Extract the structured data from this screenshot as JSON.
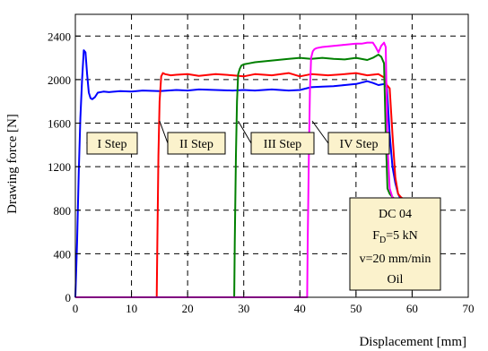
{
  "chart_data": {
    "type": "line",
    "xlabel": "Displacement [mm]",
    "ylabel": "Drawing force [N]",
    "xlim": [
      0,
      70
    ],
    "ylim": [
      0,
      2600
    ],
    "x_ticks": [
      "0",
      "10",
      "20",
      "30",
      "40",
      "50",
      "60",
      "70"
    ],
    "y_ticks": [
      "0",
      "400",
      "800",
      "1200",
      "1600",
      "2000",
      "2400"
    ],
    "grid": true,
    "series": [
      {
        "name": "I Step",
        "color": "#0000ff",
        "x": [
          0,
          0.3,
          0.6,
          0.9,
          1.2,
          1.5,
          1.8,
          2.1,
          2.4,
          2.7,
          3.0,
          3.5,
          4,
          5,
          6,
          8,
          10,
          12,
          15,
          18,
          20,
          22,
          25,
          28,
          30,
          32,
          35,
          38,
          40,
          42,
          44,
          46,
          48,
          50,
          52,
          53,
          54,
          55,
          55.5,
          56,
          56.5,
          57,
          57.5,
          58,
          58.5
        ],
        "y": [
          0,
          500,
          1150,
          1650,
          2000,
          2270,
          2250,
          2050,
          1880,
          1830,
          1820,
          1840,
          1880,
          1890,
          1885,
          1895,
          1890,
          1900,
          1895,
          1905,
          1900,
          1910,
          1905,
          1900,
          1905,
          1900,
          1910,
          1900,
          1905,
          1930,
          1935,
          1940,
          1950,
          1960,
          1985,
          1970,
          1950,
          1960,
          1930,
          1500,
          1200,
          1050,
          950,
          900,
          880
        ]
      },
      {
        "name": "II Step",
        "color": "#ff0000",
        "x": [
          0,
          14.5,
          14.6,
          14.8,
          15.0,
          15.3,
          15.6,
          16,
          17,
          18,
          20,
          22,
          25,
          28,
          30,
          32,
          35,
          38,
          40,
          42,
          45,
          48,
          50,
          52,
          54,
          55,
          55.5,
          56,
          56.5,
          57,
          57.5,
          58,
          58.5
        ],
        "y": [
          0,
          0,
          500,
          1300,
          1800,
          2030,
          2060,
          2050,
          2040,
          2045,
          2050,
          2035,
          2050,
          2040,
          2030,
          2050,
          2040,
          2060,
          2030,
          2050,
          2040,
          2050,
          2060,
          2040,
          2050,
          2020,
          1950,
          1920,
          1500,
          1100,
          950,
          920,
          900
        ]
      },
      {
        "name": "III Step",
        "color": "#008000",
        "x": [
          0,
          28.3,
          28.4,
          28.6,
          28.8,
          29.0,
          29.3,
          29.6,
          30,
          31,
          32,
          34,
          36,
          38,
          40,
          42,
          44,
          46,
          48,
          50,
          52,
          53,
          54,
          54.5,
          55,
          55.3,
          55.6,
          56,
          56.5,
          57,
          57.5
        ],
        "y": [
          0,
          0,
          500,
          1300,
          1800,
          2050,
          2100,
          2130,
          2140,
          2150,
          2160,
          2170,
          2180,
          2190,
          2200,
          2190,
          2200,
          2190,
          2185,
          2200,
          2180,
          2200,
          2230,
          2210,
          2150,
          1500,
          1000,
          950,
          920,
          900,
          880
        ]
      },
      {
        "name": "IV Step",
        "color": "#ff00ff",
        "x": [
          0,
          41.3,
          41.4,
          41.6,
          41.8,
          42.0,
          42.3,
          42.6,
          43,
          44,
          46,
          48,
          50,
          51,
          52,
          53,
          53.5,
          54,
          54.5,
          55,
          55.3,
          55.6,
          56,
          56.3,
          56.6
        ],
        "y": [
          0,
          0,
          500,
          1300,
          1900,
          2200,
          2260,
          2280,
          2290,
          2300,
          2310,
          2320,
          2330,
          2330,
          2340,
          2340,
          2300,
          2250,
          2310,
          2340,
          2300,
          1400,
          1000,
          950,
          900
        ]
      }
    ],
    "annotations": [
      {
        "label": "I Step",
        "color": "#0000ff"
      },
      {
        "label": "II Step",
        "color": "#ff0000"
      },
      {
        "label": "III Step",
        "color": "#008000"
      },
      {
        "label": "IV Step",
        "color": "#ff00ff"
      }
    ],
    "info_box": {
      "line1": "DC 04",
      "line2_main": "F",
      "line2_sub": "D",
      "line2_rest": "=5 kN",
      "line3": "v=20 mm/min",
      "line4": "Oil"
    }
  }
}
